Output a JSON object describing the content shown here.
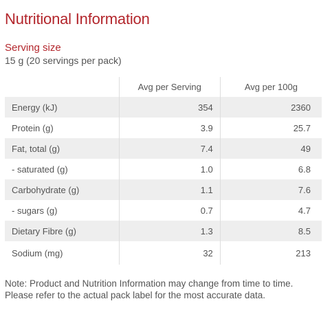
{
  "title": "Nutritional Information",
  "serving": {
    "heading": "Serving size",
    "value": "15 g (20 servings per pack)"
  },
  "table": {
    "headers": [
      "",
      "Avg per Serving",
      "Avg per 100g"
    ],
    "rows": [
      {
        "label": "Energy (kJ)",
        "per_serving": "354",
        "per_100g": "2360"
      },
      {
        "label": "Protein (g)",
        "per_serving": "3.9",
        "per_100g": "25.7"
      },
      {
        "label": "Fat, total (g)",
        "per_serving": "7.4",
        "per_100g": "49"
      },
      {
        "label": "- saturated (g)",
        "per_serving": "1.0",
        "per_100g": "6.8"
      },
      {
        "label": "Carbohydrate (g)",
        "per_serving": "1.1",
        "per_100g": "7.6"
      },
      {
        "label": "- sugars (g)",
        "per_serving": "0.7",
        "per_100g": "4.7"
      },
      {
        "label": "Dietary Fibre (g)",
        "per_serving": "1.3",
        "per_100g": "8.5"
      },
      {
        "label": "Sodium (mg)",
        "per_serving": "32",
        "per_100g": "213"
      }
    ]
  },
  "note": "Note: Product and Nutrition Information may change from time to time. Please refer to the actual pack label for the most accurate data.",
  "colors": {
    "accent": "#b3262c",
    "text": "#555555",
    "row_shade": "#eeeeee",
    "divider": "#dddddd"
  }
}
